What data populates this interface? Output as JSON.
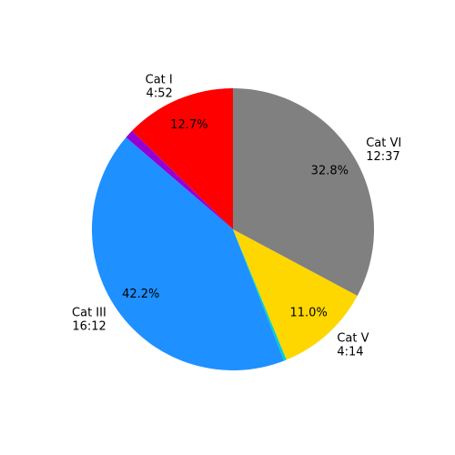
{
  "chart_data": {
    "type": "pie",
    "categories": [
      "Cat I",
      null,
      "Cat III",
      null,
      "Cat V",
      "Cat VI"
    ],
    "times": [
      "4:52",
      null,
      "16:12",
      null,
      "4:14",
      "12:37"
    ],
    "values": [
      12.7,
      1.0,
      42.2,
      0.3,
      11.0,
      32.8
    ],
    "value_labels": [
      "12.7%",
      null,
      "42.2%",
      null,
      "11.0%",
      "32.8%"
    ],
    "colors": [
      "#ff0000",
      "#9400d3",
      "#1e90ff",
      "#00ced1",
      "#ffd700",
      "#808080"
    ]
  }
}
